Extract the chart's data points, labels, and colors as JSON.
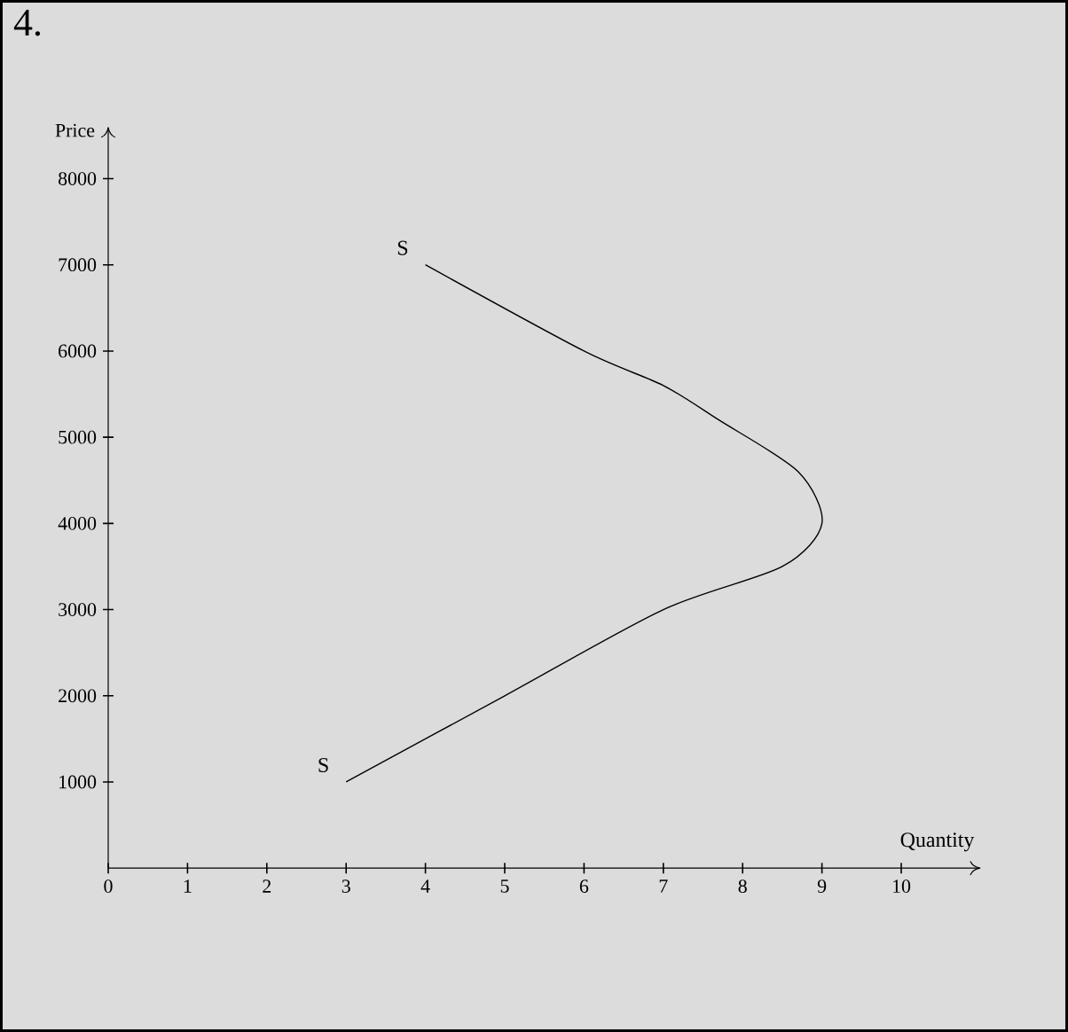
{
  "chart_data": {
    "type": "line",
    "title": "4.",
    "xlabel": "Quantity",
    "ylabel": "Price",
    "series": [
      {
        "name": "S",
        "color": "#000000",
        "x": [
          3,
          5,
          7,
          8.5,
          9,
          8.7,
          7.7,
          7,
          6,
          4
        ],
        "values": [
          1000,
          2000,
          3000,
          3500,
          4000,
          4600,
          5200,
          5600,
          6000,
          7000
        ]
      }
    ],
    "xlim": [
      0,
      11
    ],
    "ylim": [
      0,
      8600
    ],
    "xticks": [
      0,
      1,
      2,
      3,
      4,
      5,
      6,
      7,
      8,
      9,
      10
    ],
    "yticks": [
      1000,
      2000,
      3000,
      4000,
      5000,
      6000,
      7000,
      8000
    ],
    "grid": false,
    "marker": "none",
    "line_style": "solid"
  }
}
